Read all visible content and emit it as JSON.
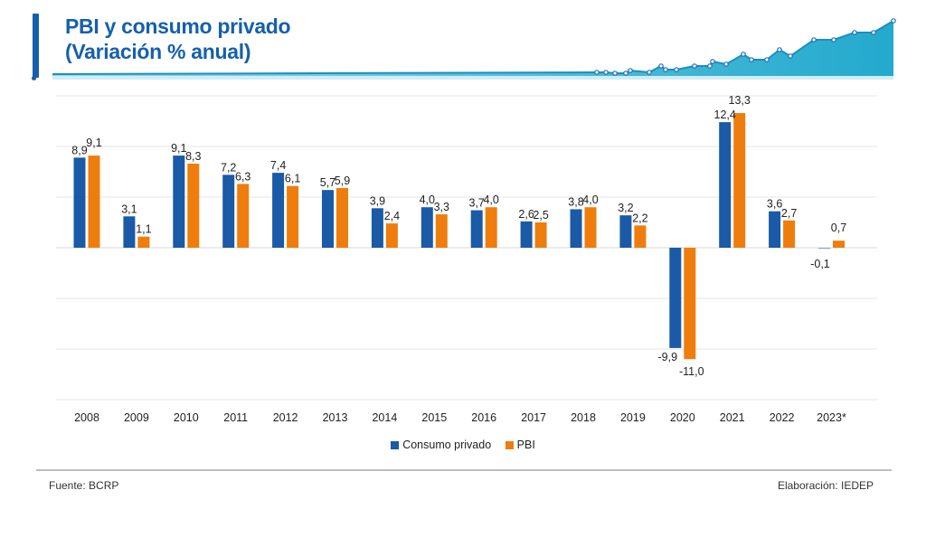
{
  "header": {
    "title_line1": "PBI y consumo privado",
    "title_line2": "(Variación % anual)"
  },
  "colors": {
    "title": "#1560ac",
    "consumo": "#1a5aa6",
    "pbi": "#ef7d0d",
    "grid": "#e6e6e6",
    "deco_fill": "#1aa3c8"
  },
  "chart_data": {
    "type": "bar",
    "title": "PBI y consumo privado (Variación % anual)",
    "xlabel": "",
    "ylabel": "",
    "categories": [
      "2008",
      "2009",
      "2010",
      "2011",
      "2012",
      "2013",
      "2014",
      "2015",
      "2016",
      "2017",
      "2018",
      "2019",
      "2020",
      "2021",
      "2022",
      "2023*"
    ],
    "series": [
      {
        "name": "Consumo privado",
        "color": "#1a5aa6",
        "values": [
          8.9,
          3.1,
          9.1,
          7.2,
          7.4,
          5.7,
          3.9,
          4.0,
          3.7,
          2.6,
          3.8,
          3.2,
          -9.9,
          12.4,
          3.6,
          -0.1
        ],
        "labels": [
          "8,9",
          "3,1",
          "9,1",
          "7,2",
          "7,4",
          "5,7",
          "3,9",
          "4,0",
          "3,7",
          "2,6",
          "3,8",
          "3,2",
          "-9,9",
          "12,4",
          "3,6",
          "-0,1"
        ]
      },
      {
        "name": "PBI",
        "color": "#ef7d0d",
        "values": [
          9.1,
          1.1,
          8.3,
          6.3,
          6.1,
          5.9,
          2.4,
          3.3,
          4.0,
          2.5,
          4.0,
          2.2,
          -11.0,
          13.3,
          2.7,
          0.7
        ],
        "labels": [
          "9,1",
          "1,1",
          "8,3",
          "6,3",
          "6,1",
          "5,9",
          "2,4",
          "3,3",
          "4,0",
          "2,5",
          "4,0",
          "2,2",
          "-11,0",
          "13,3",
          "2,7",
          "0,7"
        ]
      }
    ],
    "ylim": [
      -15,
      15
    ],
    "gridlines": [
      -15,
      -10,
      -5,
      0,
      5,
      10,
      15
    ],
    "grid": true,
    "yaxis_labels_shown": false,
    "legend": {
      "position": "bottom-center",
      "entries": [
        "Consumo privado",
        "PBI"
      ]
    }
  },
  "legend": {
    "items": [
      {
        "label": "Consumo privado",
        "color": "#1a5aa6"
      },
      {
        "label": "PBI",
        "color": "#ef7d0d"
      }
    ]
  },
  "footer": {
    "source": "Fuente: BCRP",
    "credit": "Elaboración: IEDEP"
  }
}
